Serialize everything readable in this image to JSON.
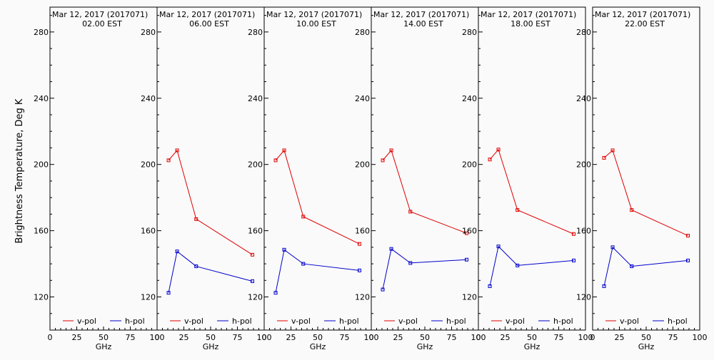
{
  "ylabel": "Brightness Temperature, Deg K",
  "xlabel": "GHz",
  "legend": {
    "v": "v-pol",
    "h": "h-pol"
  },
  "colors": {
    "v": "#e00000",
    "h": "#0000cc",
    "axis": "#000000",
    "bg": "#fafafa"
  },
  "x_ticks": [
    "0",
    "25",
    "50",
    "75",
    "100"
  ],
  "y_ticks": [
    "120",
    "160",
    "200",
    "240",
    "280"
  ],
  "chart_data": [
    {
      "type": "line",
      "title": "Mar 12, 2017 (2017071)",
      "subtitle": "02.00 EST",
      "xlim": [
        0,
        100
      ],
      "ylim": [
        100,
        295
      ],
      "series": [
        {
          "name": "v-pol",
          "x": [],
          "y": []
        },
        {
          "name": "h-pol",
          "x": [],
          "y": []
        }
      ]
    },
    {
      "type": "line",
      "title": "Mar 12, 2017 (2017071)",
      "subtitle": "06.00 EST",
      "xlim": [
        0,
        100
      ],
      "ylim": [
        100,
        295
      ],
      "series": [
        {
          "name": "v-pol",
          "x": [
            10.7,
            18.7,
            36.5,
            89.0
          ],
          "y": [
            202.5,
            208.5,
            167.0,
            145.5
          ]
        },
        {
          "name": "h-pol",
          "x": [
            10.7,
            18.7,
            36.5,
            89.0
          ],
          "y": [
            122.5,
            147.5,
            138.5,
            129.5
          ]
        }
      ]
    },
    {
      "type": "line",
      "title": "Mar 12, 2017 (2017071)",
      "subtitle": "10.00 EST",
      "xlim": [
        0,
        100
      ],
      "ylim": [
        100,
        295
      ],
      "series": [
        {
          "name": "v-pol",
          "x": [
            10.7,
            18.7,
            36.5,
            89.0
          ],
          "y": [
            202.5,
            208.5,
            168.5,
            152.0
          ]
        },
        {
          "name": "h-pol",
          "x": [
            10.7,
            18.7,
            36.5,
            89.0
          ],
          "y": [
            122.5,
            148.5,
            140.0,
            136.0
          ]
        }
      ]
    },
    {
      "type": "line",
      "title": "Mar 12, 2017 (2017071)",
      "subtitle": "14.00 EST",
      "xlim": [
        0,
        100
      ],
      "ylim": [
        100,
        295
      ],
      "series": [
        {
          "name": "v-pol",
          "x": [
            10.7,
            18.7,
            36.5,
            89.0
          ],
          "y": [
            202.5,
            208.5,
            171.5,
            158.5
          ]
        },
        {
          "name": "h-pol",
          "x": [
            10.7,
            18.7,
            36.5,
            89.0
          ],
          "y": [
            124.5,
            149.0,
            140.5,
            142.5
          ]
        }
      ]
    },
    {
      "type": "line",
      "title": "Mar 12, 2017 (2017071)",
      "subtitle": "18.00 EST",
      "xlim": [
        0,
        100
      ],
      "ylim": [
        100,
        295
      ],
      "series": [
        {
          "name": "v-pol",
          "x": [
            10.7,
            18.7,
            36.5,
            89.0
          ],
          "y": [
            203.0,
            209.0,
            172.5,
            158.0
          ]
        },
        {
          "name": "h-pol",
          "x": [
            10.7,
            18.7,
            36.5,
            89.0
          ],
          "y": [
            126.5,
            150.5,
            139.0,
            142.0
          ]
        }
      ]
    },
    {
      "type": "line",
      "title": "Mar 12, 2017 (2017071)",
      "subtitle": "22.00 EST",
      "xlim": [
        0,
        100
      ],
      "ylim": [
        100,
        295
      ],
      "series": [
        {
          "name": "v-pol",
          "x": [
            10.7,
            18.7,
            36.5,
            89.0
          ],
          "y": [
            204.0,
            208.5,
            172.5,
            157.0
          ]
        },
        {
          "name": "h-pol",
          "x": [
            10.7,
            18.7,
            36.5,
            89.0
          ],
          "y": [
            126.5,
            150.0,
            138.5,
            142.0
          ]
        }
      ]
    }
  ]
}
